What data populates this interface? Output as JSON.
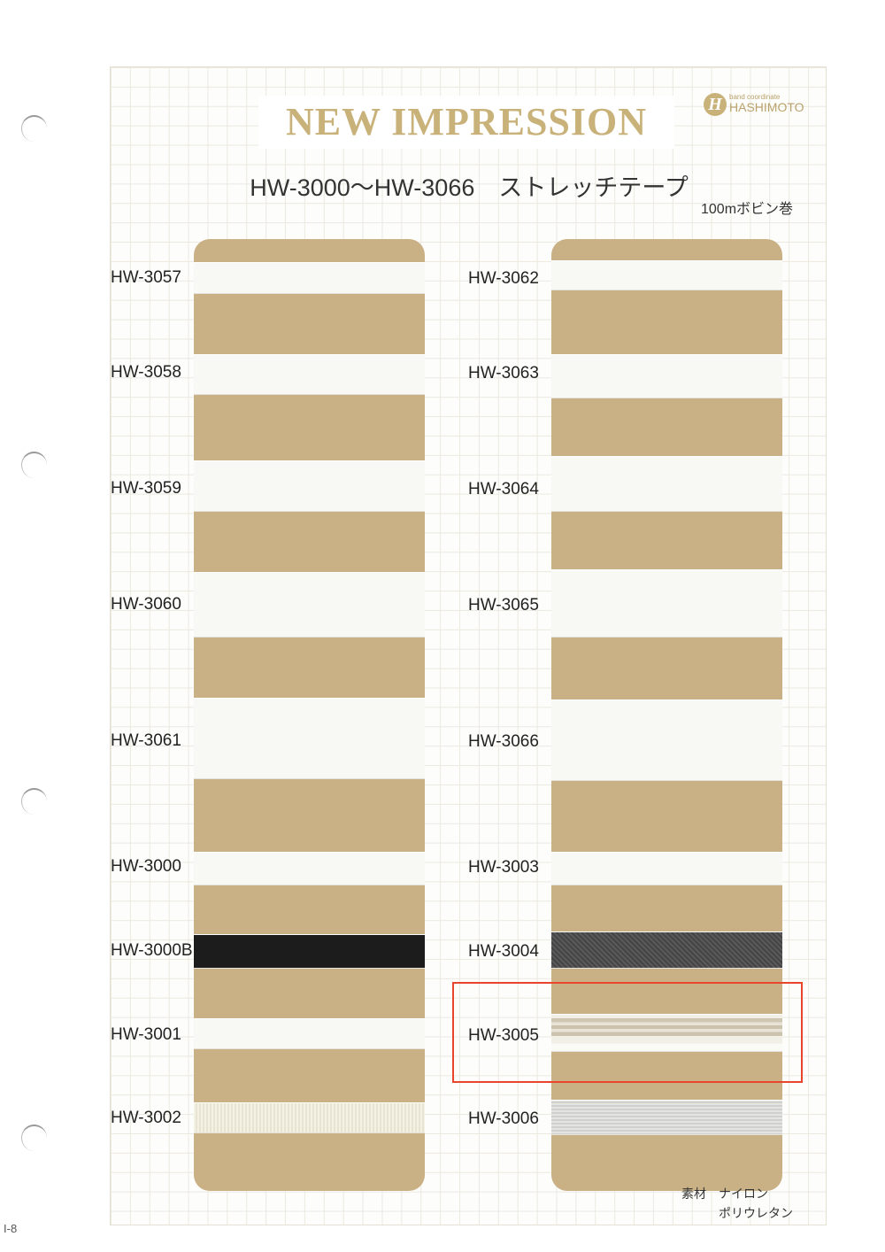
{
  "header": {
    "title": "NEW IMPRESSION",
    "subtitle": "HW-3000～HW-3066　ストレッチテープ",
    "spool": "100mボビン巻",
    "logo": {
      "mark": "H",
      "tagline": "band coordinate",
      "name": "HASHIMOTO"
    }
  },
  "colors": {
    "card": "#c9b185",
    "title": "#c9b27a",
    "highlight": "#e8452c"
  },
  "left_column": [
    {
      "code": "HW-3057",
      "color": "white"
    },
    {
      "code": "HW-3058",
      "color": "white"
    },
    {
      "code": "HW-3059",
      "color": "white"
    },
    {
      "code": "HW-3060",
      "color": "white"
    },
    {
      "code": "HW-3061",
      "color": "white"
    },
    {
      "code": "HW-3000",
      "color": "white"
    },
    {
      "code": "HW-3000B",
      "color": "black"
    },
    {
      "code": "HW-3001",
      "color": "white"
    },
    {
      "code": "HW-3002",
      "color": "off-white"
    }
  ],
  "right_column": [
    {
      "code": "HW-3062",
      "color": "white"
    },
    {
      "code": "HW-3063",
      "color": "white"
    },
    {
      "code": "HW-3064",
      "color": "white"
    },
    {
      "code": "HW-3065",
      "color": "white"
    },
    {
      "code": "HW-3066",
      "color": "white"
    },
    {
      "code": "HW-3003",
      "color": "white"
    },
    {
      "code": "HW-3004",
      "color": "dark gray"
    },
    {
      "code": "HW-3005",
      "color": "beige stripe",
      "highlighted": true
    },
    {
      "code": "HW-3006",
      "color": "light gray"
    }
  ],
  "material": {
    "label": "素材",
    "values": [
      "ナイロン",
      "ポリウレタン"
    ]
  },
  "page_number": "I-8"
}
